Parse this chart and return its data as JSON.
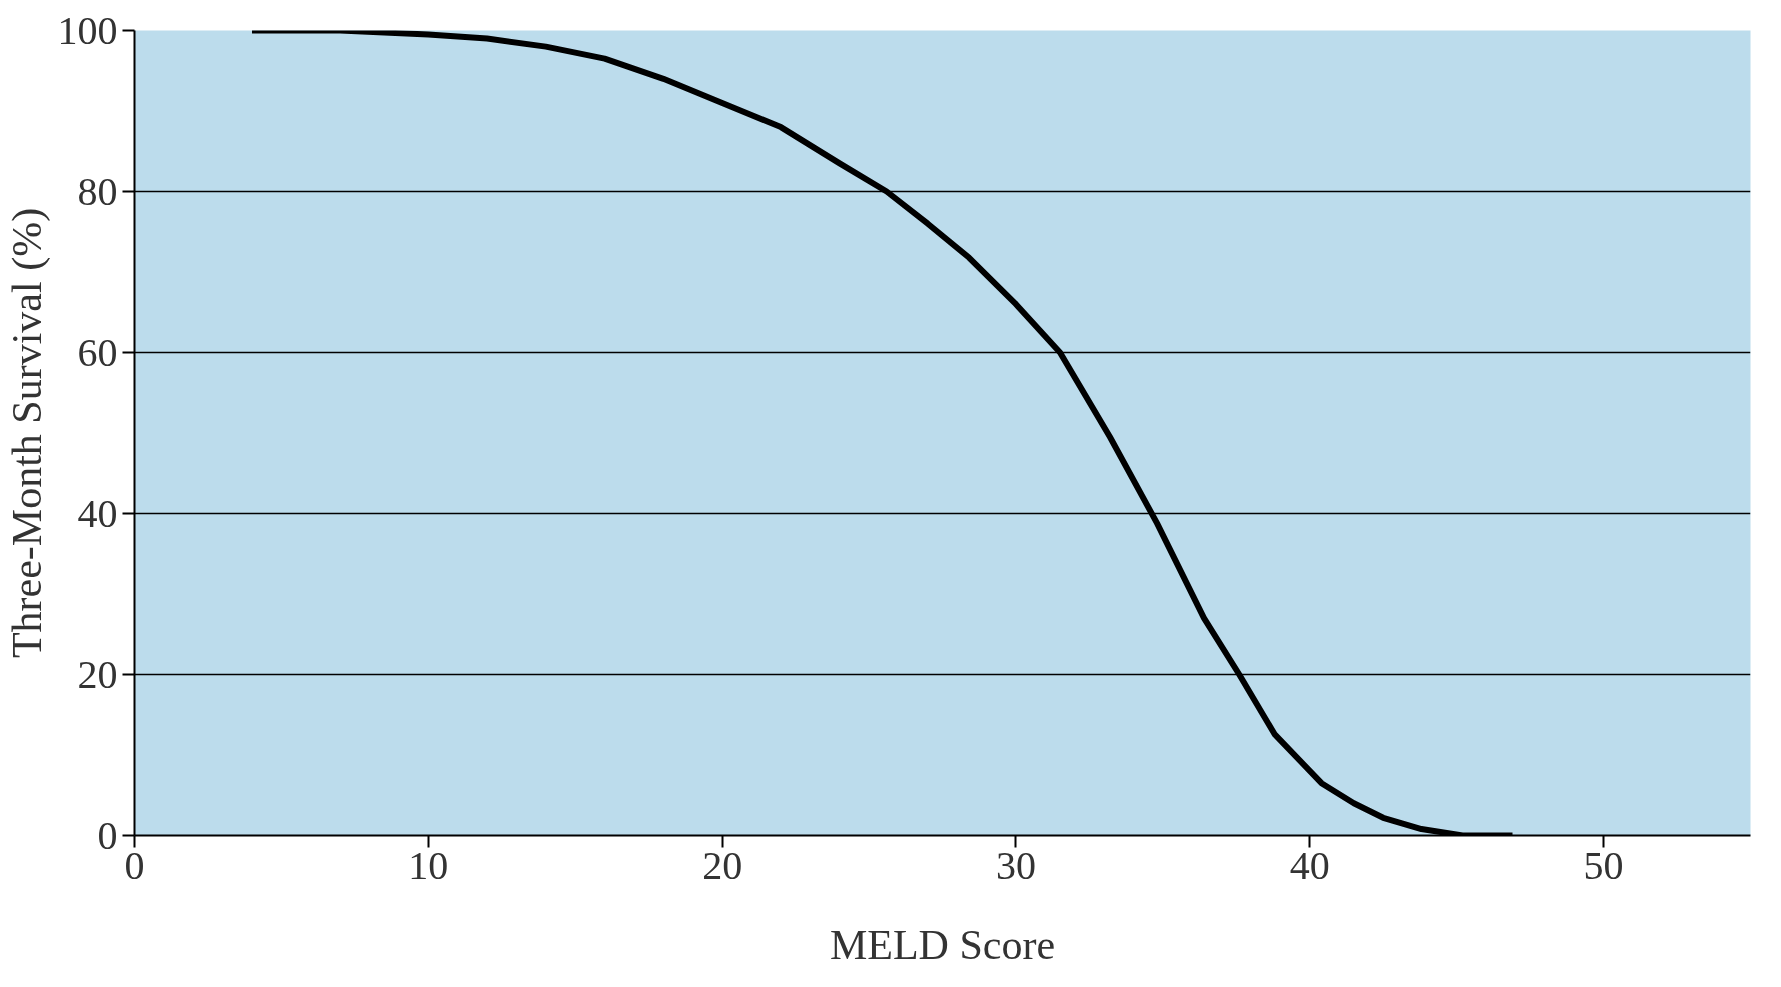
{
  "chart_data": {
    "type": "line",
    "xlabel": "MELD Score",
    "ylabel": "Three-Month Survival (%)",
    "x": [
      4,
      7,
      10,
      12,
      14,
      16,
      18,
      20,
      22,
      24,
      25.6,
      27,
      28.4,
      30,
      31.5,
      33.2,
      34.8,
      36.4,
      37.6,
      38.8,
      40.4,
      41.5,
      42.5,
      43.8,
      45.2,
      46.9
    ],
    "series": [
      {
        "color": "#000000",
        "values": [
          100,
          100,
          99.5,
          99,
          98,
          96.5,
          94,
          91,
          88,
          83.5,
          80,
          76,
          71.8,
          66,
          60,
          49.5,
          38.8,
          27,
          20,
          12.6,
          6.5,
          4,
          2.2,
          0.8,
          0,
          0
        ]
      }
    ],
    "xlim": [
      0,
      55
    ],
    "ylim": [
      0,
      100
    ],
    "xticks": [
      0,
      10,
      20,
      30,
      40,
      50
    ],
    "yticks": [
      0,
      20,
      40,
      60,
      80,
      100
    ],
    "grid": "y",
    "marker": "none",
    "line_style": "solid"
  }
}
